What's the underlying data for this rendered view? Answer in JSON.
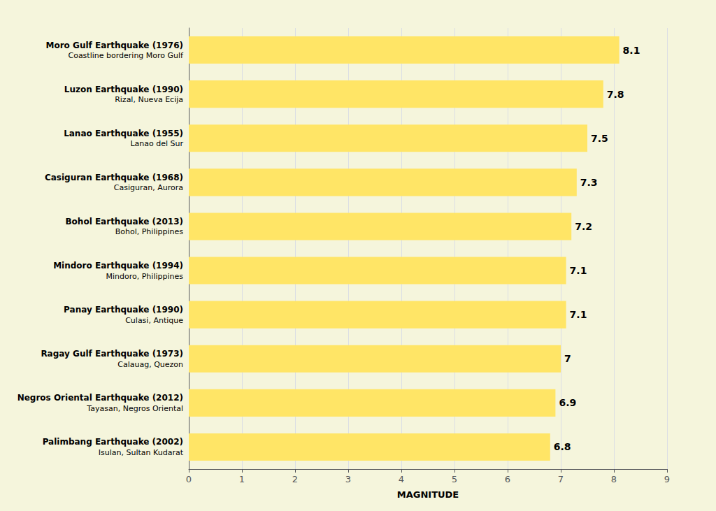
{
  "chart_data": {
    "type": "bar",
    "orientation": "horizontal",
    "xlabel": "MAGNITUDE",
    "categories": [
      "Moro Gulf Earthquake (1976)\nCoastline bordering Moro Gulf",
      "Luzon Earthquake (1990)\nRizal, Nueva Ecija",
      "Lanao Earthquake (1955)\nLanao del Sur",
      "Casiguran Earthquake (1968)\nCasiguran, Aurora",
      "Bohol Earthquake (2013)\nBohol, Philippines",
      "Mindoro Earthquake (1994)\nMindoro, Philippines",
      "Panay Earthquake (1990)\nCulasi, Antique",
      "Ragay Gulf Earthquake (1973)\nCalauag, Quezon",
      "Negros Oriental Earthquake (2012)\nTayasan, Negros Oriental",
      "Palimbang Earthquake (2002)\nIsulan, Sultan Kudarat"
    ],
    "values": [
      8.1,
      7.8,
      7.5,
      7.3,
      7.2,
      7.1,
      7.1,
      7.0,
      6.9,
      6.8
    ],
    "color": "#FFE566",
    "xlim": [
      0,
      9
    ],
    "xticks": [
      0,
      1,
      2,
      3,
      4,
      5,
      6,
      7,
      8,
      9
    ],
    "grid": true,
    "data_labels": true
  }
}
